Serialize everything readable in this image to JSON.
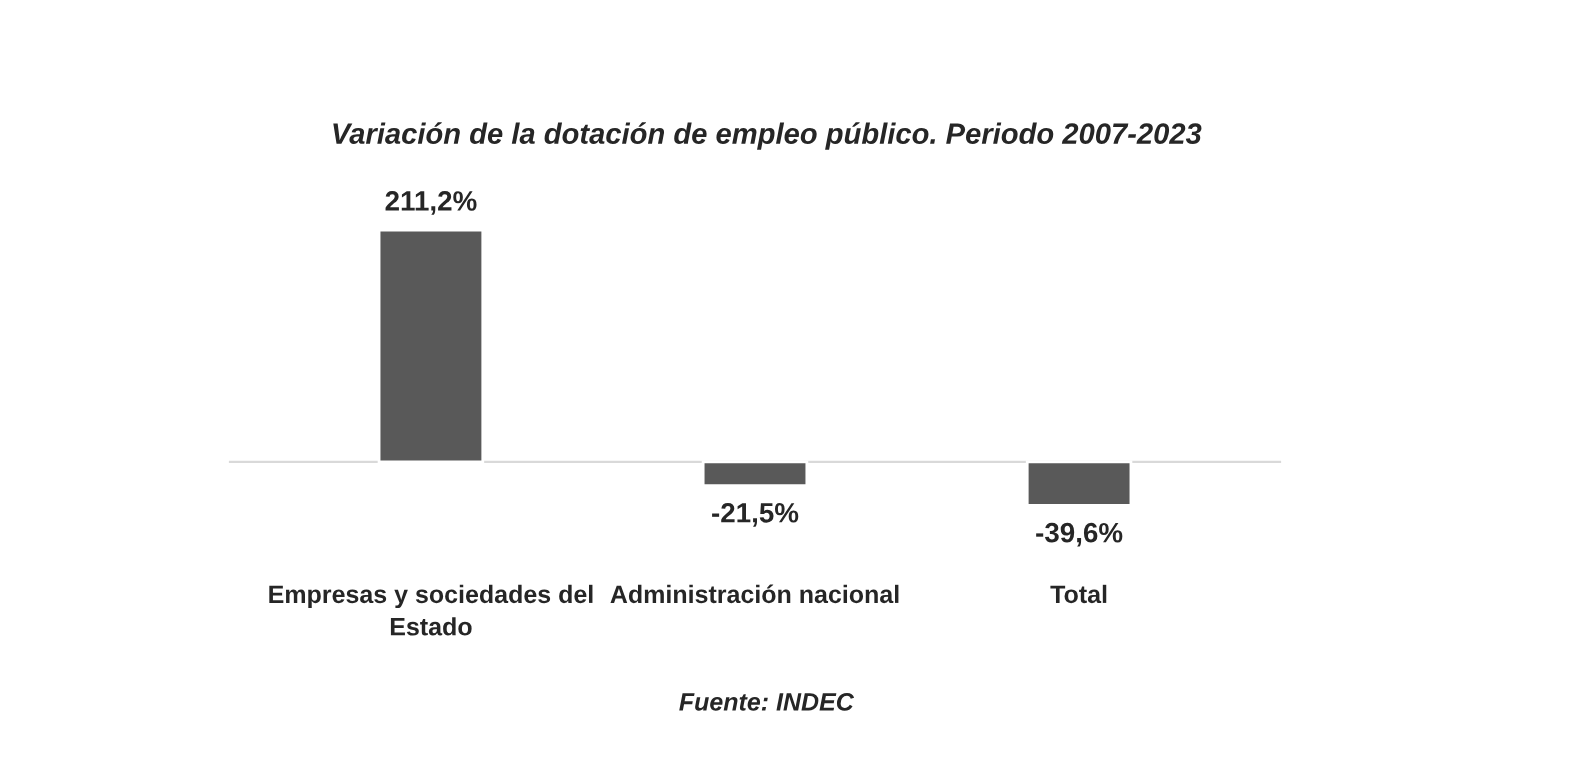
{
  "chart_data": {
    "type": "bar",
    "title": "Variación de la dotación de empleo público. Periodo 2007-2023",
    "categories": [
      "Empresas y sociedades del\nEstado",
      "Administración nacional",
      "Total"
    ],
    "values": [
      211.2,
      -21.5,
      -39.6
    ],
    "value_labels": [
      "211,2%",
      "-21,5%",
      "-39,6%"
    ],
    "color": "#595959",
    "annotations": [
      "Fuente: INDEC"
    ]
  }
}
